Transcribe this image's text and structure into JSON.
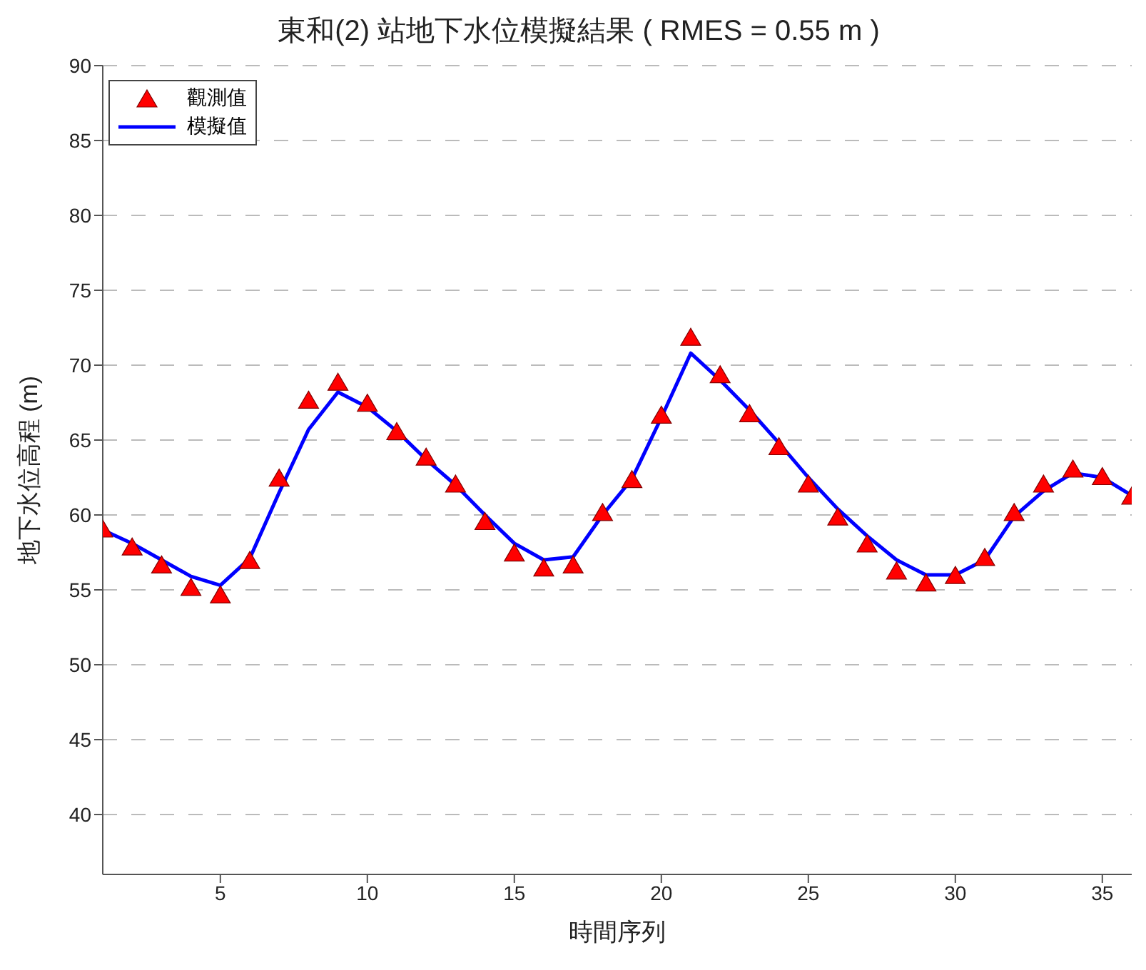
{
  "chart_data": {
    "type": "line",
    "title": "東和(2) 站地下水位模擬結果 ( RMES = 0.55 m )",
    "xlabel": "時間序列",
    "ylabel": "地下水位高程 (m)",
    "x": [
      1,
      2,
      3,
      4,
      5,
      6,
      7,
      8,
      9,
      10,
      11,
      12,
      13,
      14,
      15,
      16,
      17,
      18,
      19,
      20,
      21,
      22,
      23,
      24,
      25,
      26,
      27,
      28,
      29,
      30,
      31,
      32,
      33,
      34,
      35,
      36
    ],
    "series": [
      {
        "name": "觀測值",
        "type": "scatter",
        "marker": "triangle",
        "color": "#ff0000",
        "values": [
          59.0,
          57.8,
          56.6,
          55.1,
          54.6,
          56.9,
          62.4,
          67.6,
          68.8,
          67.4,
          65.5,
          63.8,
          62.0,
          59.5,
          57.4,
          56.4,
          56.6,
          60.1,
          62.3,
          66.6,
          71.8,
          69.3,
          66.7,
          64.5,
          62.0,
          59.8,
          58.0,
          56.2,
          55.4,
          55.9,
          57.1,
          60.1,
          62.0,
          63.0,
          62.5,
          61.2
        ]
      },
      {
        "name": "模擬值",
        "marker": "none",
        "color": "#0000ff",
        "values": [
          59.0,
          58.1,
          57.0,
          55.9,
          55.3,
          57.1,
          61.5,
          65.7,
          68.2,
          67.2,
          65.6,
          63.7,
          62.0,
          60.0,
          58.1,
          57.0,
          57.2,
          60.0,
          62.4,
          66.5,
          70.8,
          69.0,
          67.0,
          64.8,
          62.5,
          60.4,
          58.6,
          57.0,
          56.0,
          56.0,
          57.0,
          59.9,
          61.6,
          62.8,
          62.5,
          61.3
        ]
      }
    ],
    "xlim": [
      1,
      36
    ],
    "xticks": [
      5,
      10,
      15,
      20,
      25,
      30,
      35
    ],
    "ylim": [
      36,
      90
    ],
    "yticks": [
      40,
      45,
      50,
      55,
      60,
      65,
      70,
      75,
      80,
      85,
      90
    ],
    "grid": "y",
    "legend": "top left"
  }
}
